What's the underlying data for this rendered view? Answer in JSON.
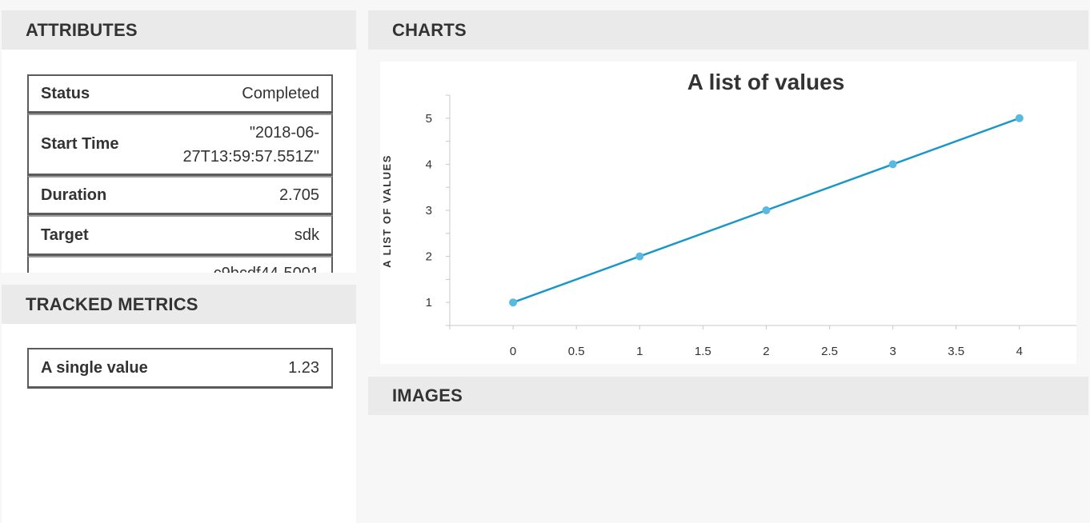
{
  "attributes": {
    "title": "ATTRIBUTES",
    "rows": [
      {
        "key": "Status",
        "value": "Completed"
      },
      {
        "key": "Start Time",
        "value_line1": "\"2018-06-",
        "value_line2": "27T13:59:57.551Z\""
      },
      {
        "key": "Duration",
        "value": "2.705"
      },
      {
        "key": "Target",
        "value": "sdk"
      }
    ],
    "partial_row_value": "c9bcdf44-5001"
  },
  "tracked_metrics": {
    "title": "TRACKED METRICS",
    "rows": [
      {
        "key": "A single value",
        "value": "1.23"
      }
    ]
  },
  "charts": {
    "title": "CHARTS"
  },
  "images": {
    "title": "IMAGES"
  },
  "chart_data": {
    "type": "line",
    "title": "A list of values",
    "ylabel": "A LIST OF VALUES",
    "xlabel": "",
    "x": [
      0,
      1,
      2,
      3,
      4
    ],
    "y": [
      1,
      2,
      3,
      4,
      5
    ],
    "xlim": [
      -0.5,
      4.45
    ],
    "ylim": [
      0.5,
      5.5
    ],
    "xticks": [
      "0",
      "0.5",
      "1",
      "1.5",
      "2",
      "2.5",
      "3",
      "3.5",
      "4"
    ],
    "yticks": [
      "1",
      "2",
      "3",
      "4",
      "5"
    ],
    "line_color": "#1a97c6",
    "marker_color": "#5ab9df",
    "grid": false
  }
}
